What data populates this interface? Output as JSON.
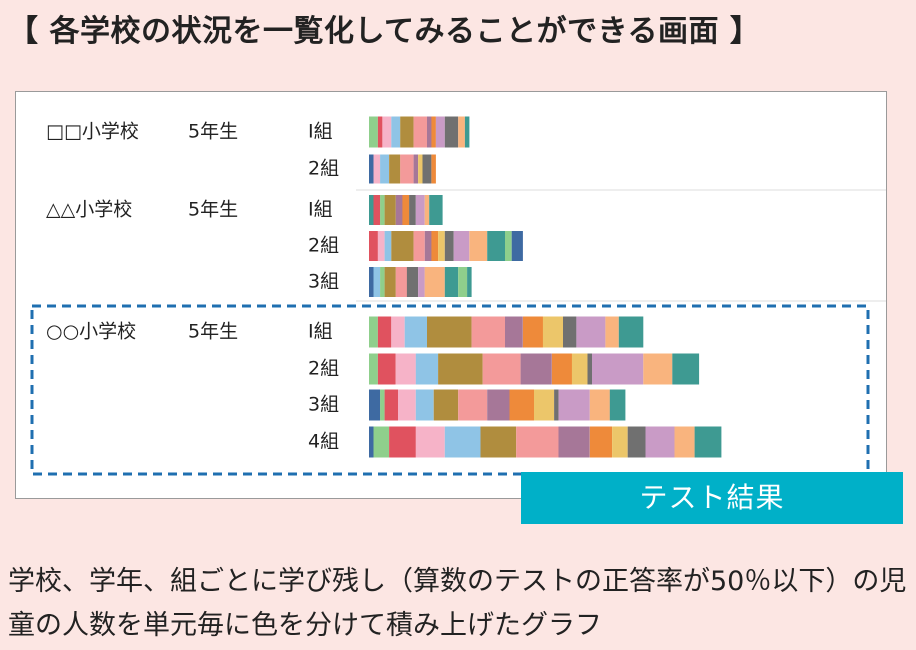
{
  "heading": "【 各学校の状況を一覧化してみることができる画面 】",
  "caption": "テスト結果",
  "description": "学校、学年、組ごとに学び残し（算数のテストの正答率が50％以下）の児童の人数を単元毎に色を分けて積み上げたグラフ",
  "colors": {
    "highlight_border": "#1f6fb0",
    "caption_bg": "#00b0c8",
    "unit_palette": [
      "#3e6aa2",
      "#8fcf8c",
      "#e0525f",
      "#f6b3c8",
      "#8fc4e6",
      "#b08d3e",
      "#f39a9a",
      "#a67798",
      "#ee8a3a",
      "#ecc66a",
      "#707070",
      "#c99bc6",
      "#f9b47e",
      "#3e9a92"
    ]
  },
  "chart_data": {
    "type": "bar",
    "orientation": "horizontal",
    "stacked": true,
    "grade_label": "5年生",
    "highlighted_school": "○○小学校",
    "groups": [
      {
        "school": "□□小学校",
        "classes": [
          {
            "label": "Ⅰ組",
            "segments": [
              {
                "unit": 2,
                "value": 0.4
              },
              {
                "unit": 3,
                "value": 0.2
              },
              {
                "unit": 4,
                "value": 0.4
              },
              {
                "unit": 5,
                "value": 0.4
              },
              {
                "unit": 6,
                "value": 0.6
              },
              {
                "unit": 7,
                "value": 0.6
              },
              {
                "unit": 8,
                "value": 0.2
              },
              {
                "unit": 9,
                "value": 0.2
              },
              {
                "unit": 12,
                "value": 0.4
              },
              {
                "unit": 11,
                "value": 0.6
              },
              {
                "unit": 13,
                "value": 0.3
              },
              {
                "unit": 14,
                "value": 0.2
              }
            ]
          },
          {
            "label": "2組",
            "segments": [
              {
                "unit": 1,
                "value": 0.2
              },
              {
                "unit": 4,
                "value": 0.3
              },
              {
                "unit": 5,
                "value": 0.4
              },
              {
                "unit": 6,
                "value": 0.5
              },
              {
                "unit": 7,
                "value": 0.6
              },
              {
                "unit": 8,
                "value": 0.2
              },
              {
                "unit": 10,
                "value": 0.2
              },
              {
                "unit": 11,
                "value": 0.4
              },
              {
                "unit": 9,
                "value": 0.2
              }
            ]
          }
        ]
      },
      {
        "school": "△△小学校",
        "classes": [
          {
            "label": "Ⅰ組",
            "segments": [
              {
                "unit": 14,
                "value": 0.2
              },
              {
                "unit": 3,
                "value": 0.3
              },
              {
                "unit": 2,
                "value": 0.2
              },
              {
                "unit": 6,
                "value": 0.5
              },
              {
                "unit": 8,
                "value": 0.3
              },
              {
                "unit": 9,
                "value": 0.3
              },
              {
                "unit": 11,
                "value": 0.3
              },
              {
                "unit": 12,
                "value": 0.4
              },
              {
                "unit": 13,
                "value": 0.2
              },
              {
                "unit": 14,
                "value": 0.6
              }
            ]
          },
          {
            "label": "2組",
            "segments": [
              {
                "unit": 3,
                "value": 0.4
              },
              {
                "unit": 4,
                "value": 0.3
              },
              {
                "unit": 5,
                "value": 0.3
              },
              {
                "unit": 6,
                "value": 1.0
              },
              {
                "unit": 7,
                "value": 0.5
              },
              {
                "unit": 8,
                "value": 0.3
              },
              {
                "unit": 9,
                "value": 0.3
              },
              {
                "unit": 10,
                "value": 0.3
              },
              {
                "unit": 11,
                "value": 0.4
              },
              {
                "unit": 12,
                "value": 0.7
              },
              {
                "unit": 13,
                "value": 0.8
              },
              {
                "unit": 14,
                "value": 0.8
              },
              {
                "unit": 2,
                "value": 0.3
              },
              {
                "unit": 15,
                "value": 0.5
              }
            ]
          },
          {
            "label": "3組",
            "segments": [
              {
                "unit": 1,
                "value": 0.2
              },
              {
                "unit": 5,
                "value": 0.3
              },
              {
                "unit": 2,
                "value": 0.2
              },
              {
                "unit": 6,
                "value": 0.5
              },
              {
                "unit": 7,
                "value": 0.5
              },
              {
                "unit": 11,
                "value": 0.5
              },
              {
                "unit": 12,
                "value": 0.3
              },
              {
                "unit": 13,
                "value": 0.9
              },
              {
                "unit": 14,
                "value": 0.6
              },
              {
                "unit": 16,
                "value": 0.4
              },
              {
                "unit": 14,
                "value": 0.2
              }
            ]
          }
        ]
      },
      {
        "school": "○○小学校",
        "classes": [
          {
            "label": "Ⅰ組",
            "segments": [
              {
                "unit": 2,
                "value": 0.4
              },
              {
                "unit": 3,
                "value": 0.6
              },
              {
                "unit": 4,
                "value": 0.6
              },
              {
                "unit": 5,
                "value": 1.0
              },
              {
                "unit": 6,
                "value": 2.0
              },
              {
                "unit": 7,
                "value": 1.5
              },
              {
                "unit": 8,
                "value": 0.8
              },
              {
                "unit": 9,
                "value": 0.9
              },
              {
                "unit": 10,
                "value": 0.9
              },
              {
                "unit": 11,
                "value": 0.6
              },
              {
                "unit": 12,
                "value": 1.3
              },
              {
                "unit": 13,
                "value": 0.6
              },
              {
                "unit": 14,
                "value": 1.1
              }
            ]
          },
          {
            "label": "2組",
            "segments": [
              {
                "unit": 2,
                "value": 0.4
              },
              {
                "unit": 3,
                "value": 0.8
              },
              {
                "unit": 4,
                "value": 0.9
              },
              {
                "unit": 5,
                "value": 1.0
              },
              {
                "unit": 6,
                "value": 2.0
              },
              {
                "unit": 7,
                "value": 1.7
              },
              {
                "unit": 8,
                "value": 1.4
              },
              {
                "unit": 9,
                "value": 0.9
              },
              {
                "unit": 10,
                "value": 0.7
              },
              {
                "unit": 11,
                "value": 0.2
              },
              {
                "unit": 12,
                "value": 2.3
              },
              {
                "unit": 13,
                "value": 1.3
              },
              {
                "unit": 14,
                "value": 1.2
              }
            ]
          },
          {
            "label": "3組",
            "segments": [
              {
                "unit": 1,
                "value": 0.5
              },
              {
                "unit": 2,
                "value": 0.2
              },
              {
                "unit": 3,
                "value": 0.6
              },
              {
                "unit": 4,
                "value": 0.8
              },
              {
                "unit": 5,
                "value": 0.8
              },
              {
                "unit": 6,
                "value": 1.1
              },
              {
                "unit": 7,
                "value": 1.3
              },
              {
                "unit": 8,
                "value": 1.0
              },
              {
                "unit": 9,
                "value": 1.1
              },
              {
                "unit": 10,
                "value": 0.9
              },
              {
                "unit": 11,
                "value": 0.2
              },
              {
                "unit": 12,
                "value": 1.4
              },
              {
                "unit": 13,
                "value": 0.9
              },
              {
                "unit": 14,
                "value": 0.7
              }
            ]
          },
          {
            "label": "4組",
            "segments": [
              {
                "unit": 1,
                "value": 0.2
              },
              {
                "unit": 2,
                "value": 0.7
              },
              {
                "unit": 3,
                "value": 1.2
              },
              {
                "unit": 4,
                "value": 1.3
              },
              {
                "unit": 5,
                "value": 1.6
              },
              {
                "unit": 6,
                "value": 1.6
              },
              {
                "unit": 7,
                "value": 1.9
              },
              {
                "unit": 8,
                "value": 1.4
              },
              {
                "unit": 9,
                "value": 1.0
              },
              {
                "unit": 10,
                "value": 0.7
              },
              {
                "unit": 11,
                "value": 0.8
              },
              {
                "unit": 12,
                "value": 1.3
              },
              {
                "unit": 13,
                "value": 0.9
              },
              {
                "unit": 14,
                "value": 1.2
              }
            ]
          }
        ]
      }
    ]
  }
}
